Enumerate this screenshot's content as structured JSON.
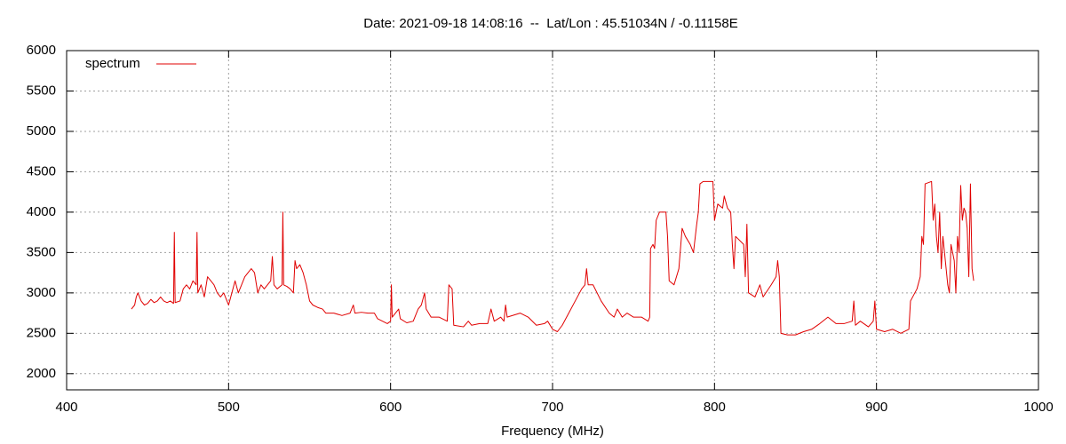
{
  "chart_data": {
    "type": "line",
    "title": "Date: 2021-09-18 14:08:16  --  Lat/Lon : 45.51034N / -0.11158E",
    "x_label": "Frequency (MHz)",
    "xlim": [
      400,
      1000
    ],
    "xticks": [
      400,
      500,
      600,
      700,
      800,
      900,
      1000
    ],
    "ylim": [
      1800,
      6000
    ],
    "yticks": [
      2000,
      2500,
      3000,
      3500,
      4000,
      4500,
      5000,
      5500,
      6000
    ],
    "grid": true,
    "legend": "top-left",
    "x": [
      440,
      442,
      443,
      444,
      446,
      448,
      450,
      452,
      454,
      456,
      458,
      460,
      462,
      464,
      466,
      466.5,
      467,
      470,
      472,
      474,
      476,
      478,
      480,
      480.5,
      481,
      483,
      485,
      487,
      489,
      491,
      493,
      495,
      497,
      499,
      500,
      502,
      504,
      506,
      508,
      510,
      512,
      514,
      516,
      518,
      520,
      522,
      524,
      526,
      527,
      528,
      530,
      533,
      533.5,
      534,
      536,
      538,
      540,
      541,
      542,
      544,
      546,
      548,
      550,
      552,
      555,
      558,
      560,
      565,
      570,
      575,
      577,
      578,
      582,
      586,
      590,
      592,
      595,
      598,
      600,
      600.5,
      601,
      605,
      606,
      610,
      614,
      617,
      619,
      621,
      622,
      625,
      630,
      635,
      636,
      638,
      639,
      645,
      648,
      650,
      655,
      660,
      662,
      664,
      668,
      670,
      671,
      672,
      680,
      685,
      690,
      695,
      697,
      700,
      703,
      706,
      710,
      714,
      718,
      720,
      721,
      722,
      725,
      730,
      735,
      738,
      740,
      743,
      746,
      750,
      755,
      759,
      760,
      760.5,
      762,
      763,
      764,
      766,
      770,
      771,
      772,
      775,
      778,
      780,
      782,
      785,
      787,
      789,
      790,
      791,
      793,
      799,
      800,
      802,
      805,
      806,
      808,
      810,
      811,
      812,
      813,
      818,
      819,
      820,
      821,
      825,
      828,
      830,
      835,
      838,
      839,
      840,
      841,
      845,
      850,
      855,
      860,
      865,
      870,
      875,
      880,
      885,
      886,
      887,
      890,
      895,
      898,
      899,
      900,
      905,
      910,
      915,
      920,
      921,
      925,
      927,
      928,
      929,
      930,
      934,
      935,
      936,
      937,
      938,
      939,
      940,
      941,
      942,
      944,
      945,
      946,
      948,
      949,
      950,
      951,
      952,
      953,
      954,
      955,
      956,
      957,
      958,
      959,
      960
    ],
    "series": [
      {
        "name": "spectrum",
        "color": "#e00000",
        "values": [
          2800,
          2850,
          2950,
          3000,
          2900,
          2850,
          2870,
          2920,
          2880,
          2900,
          2950,
          2900,
          2880,
          2900,
          2870,
          3750,
          2880,
          2900,
          3050,
          3100,
          3050,
          3150,
          3100,
          3750,
          3000,
          3100,
          2950,
          3200,
          3150,
          3100,
          3000,
          2950,
          3000,
          2900,
          2850,
          3000,
          3150,
          3000,
          3100,
          3200,
          3250,
          3300,
          3250,
          3000,
          3100,
          3050,
          3100,
          3150,
          3450,
          3100,
          3050,
          3100,
          4000,
          3100,
          3080,
          3050,
          3000,
          3400,
          3300,
          3350,
          3250,
          3100,
          2900,
          2850,
          2820,
          2800,
          2750,
          2750,
          2720,
          2750,
          2850,
          2750,
          2760,
          2750,
          2750,
          2680,
          2650,
          2620,
          2650,
          3100,
          2700,
          2800,
          2680,
          2630,
          2650,
          2800,
          2850,
          3000,
          2800,
          2700,
          2700,
          2650,
          3100,
          3050,
          2600,
          2580,
          2650,
          2600,
          2620,
          2620,
          2800,
          2650,
          2700,
          2650,
          2850,
          2700,
          2750,
          2700,
          2600,
          2620,
          2650,
          2550,
          2520,
          2600,
          2750,
          2900,
          3050,
          3100,
          3300,
          3100,
          3100,
          2900,
          2750,
          2700,
          2800,
          2700,
          2750,
          2700,
          2700,
          2650,
          2700,
          3550,
          3600,
          3550,
          3900,
          4000,
          4000,
          3700,
          3150,
          3100,
          3300,
          3800,
          3700,
          3600,
          3500,
          3850,
          4000,
          4350,
          4380,
          4380,
          3900,
          4100,
          4050,
          4200,
          4050,
          4000,
          3600,
          3300,
          3700,
          3600,
          3200,
          3850,
          3000,
          2950,
          3100,
          2950,
          3100,
          3200,
          3400,
          3200,
          2500,
          2480,
          2480,
          2520,
          2550,
          2620,
          2700,
          2620,
          2620,
          2650,
          2900,
          2600,
          2650,
          2580,
          2650,
          2900,
          2550,
          2520,
          2550,
          2500,
          2550,
          2900,
          3050,
          3200,
          3700,
          3600,
          4350,
          4380,
          3900,
          4100,
          3700,
          3500,
          4000,
          3300,
          3700,
          3500,
          3100,
          3000,
          3600,
          3400,
          3000,
          3700,
          3500,
          4330,
          3900,
          4050,
          4000,
          3800,
          3200,
          4350,
          3300,
          3150
        ]
      }
    ]
  }
}
